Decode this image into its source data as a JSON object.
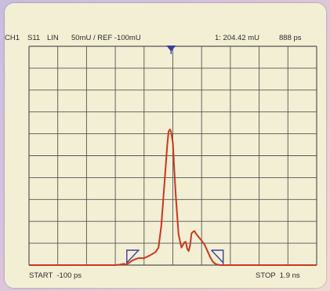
{
  "header": {
    "channel": "CH1",
    "parameter": "S11",
    "format": "LIN",
    "scale": "50mU / REF -100mU",
    "marker_readout": "1: 204.42 mU",
    "marker_time": "888 ps"
  },
  "footer": {
    "start": "START  -100 ps",
    "stop": "STOP  1.9 ns"
  },
  "colors": {
    "trace": "#c8381e",
    "grid": "#555555",
    "screen": "#f3efd4",
    "markers": "#3b3fa3"
  },
  "chart_data": {
    "type": "line",
    "title": "",
    "xlabel": "",
    "ylabel": "",
    "xlim": [
      -100,
      1900
    ],
    "x_unit": "ps",
    "ylim": [
      -100,
      400
    ],
    "y_unit": "mU",
    "grid": true,
    "series": [
      {
        "x": [
          -100,
          500,
          530,
          560,
          575,
          590,
          620,
          660,
          700,
          740,
          780,
          800,
          820,
          840,
          860,
          870,
          880,
          888,
          900,
          910,
          920,
          940,
          960,
          980,
          990,
          1000,
          1010,
          1020,
          1030,
          1040,
          1050,
          1060,
          1080,
          1100,
          1120,
          1140,
          1160,
          1180,
          1200,
          1230,
          1260,
          1300,
          1900
        ],
        "y": [
          -100,
          -100,
          -99,
          -97,
          -99,
          -96,
          -89,
          -84,
          -84,
          -78,
          -70,
          -60,
          -10,
          80,
          170,
          205,
          210,
          204,
          180,
          120,
          60,
          -30,
          -60,
          -48,
          -47,
          -63,
          -68,
          -55,
          -27,
          -24,
          -22,
          -28,
          -36,
          -44,
          -53,
          -67,
          -82,
          -93,
          -98,
          -100,
          -100,
          -100,
          -100
        ]
      }
    ]
  }
}
